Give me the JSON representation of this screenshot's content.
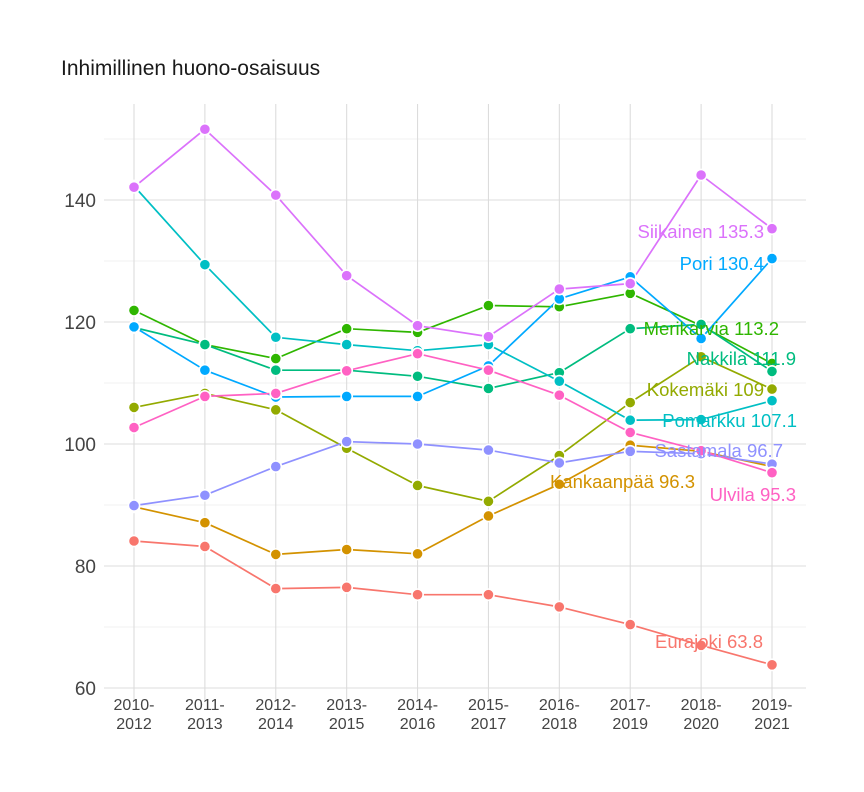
{
  "chart_data": {
    "type": "line",
    "title": "Inhimillinen huono-osaisuus",
    "xlabel": "",
    "ylabel": "",
    "categories": [
      "2010-2012",
      "2011-2013",
      "2012-2014",
      "2013-2015",
      "2014-2016",
      "2015-2017",
      "2016-2018",
      "2017-2019",
      "2018-2020",
      "2019-2021"
    ],
    "category_lines": [
      [
        "2010-",
        "2012"
      ],
      [
        "2011-",
        "2013"
      ],
      [
        "2012-",
        "2014"
      ],
      [
        "2013-",
        "2015"
      ],
      [
        "2014-",
        "2016"
      ],
      [
        "2015-",
        "2017"
      ],
      [
        "2016-",
        "2018"
      ],
      [
        "2017-",
        "2019"
      ],
      [
        "2018-",
        "2020"
      ],
      [
        "2019-",
        "2021"
      ]
    ],
    "ylim": [
      59,
      152
    ],
    "yticks": [
      60,
      80,
      100,
      120,
      140
    ],
    "grid": true,
    "legend": "none",
    "series": [
      {
        "name": "Eurajoki",
        "color": "#F8766D",
        "end_label": "Eurajoki 63.8",
        "values": [
          84.1,
          83.2,
          76.3,
          76.5,
          75.3,
          75.3,
          73.3,
          70.4,
          67.0,
          63.8
        ]
      },
      {
        "name": "Kankaanpää",
        "color": "#D39200",
        "end_label": "Kankaanpää 96.3",
        "values": [
          89.7,
          87.1,
          81.9,
          82.7,
          82.0,
          88.2,
          93.4,
          99.8,
          98.8,
          96.3
        ]
      },
      {
        "name": "Kokemäki",
        "color": "#93AA00",
        "end_label": "Kokemäki 109",
        "values": [
          106.0,
          108.3,
          105.6,
          99.3,
          93.2,
          90.6,
          98.1,
          106.8,
          114.3,
          109.0
        ]
      },
      {
        "name": "Merikarvia",
        "color": "#2FB600",
        "end_label": "Merikarvia 113.2",
        "values": [
          121.9,
          116.3,
          114.0,
          118.9,
          118.3,
          122.7,
          122.5,
          124.7,
          119.4,
          113.2
        ]
      },
      {
        "name": "Nakkila",
        "color": "#00BC7F",
        "end_label": "Nakkila 111.9",
        "values": [
          119.1,
          116.3,
          112.1,
          112.1,
          111.1,
          109.1,
          111.7,
          118.9,
          119.6,
          111.9
        ]
      },
      {
        "name": "Pomarkku",
        "color": "#00BFC4",
        "end_label": "Pomarkku 107.1",
        "values": [
          142.3,
          129.4,
          117.5,
          116.3,
          115.3,
          116.3,
          110.3,
          103.9,
          104.0,
          107.1
        ]
      },
      {
        "name": "Pori",
        "color": "#00A9FF",
        "end_label": "Pori 130.4",
        "values": [
          119.2,
          112.1,
          107.7,
          107.8,
          107.8,
          112.8,
          123.8,
          127.4,
          117.3,
          130.4
        ]
      },
      {
        "name": "Sastamala",
        "color": "#8F91FF",
        "end_label": "Sastamala 96.7",
        "values": [
          89.9,
          91.6,
          96.3,
          100.4,
          100.0,
          99.0,
          96.9,
          98.8,
          98.4,
          96.7
        ]
      },
      {
        "name": "Siikainen",
        "color": "#DB72FB",
        "end_label": "Siikainen 135.3",
        "values": [
          142.1,
          151.6,
          140.8,
          127.6,
          119.4,
          117.6,
          125.4,
          126.3,
          144.1,
          135.3
        ]
      },
      {
        "name": "Ulvila",
        "color": "#FF61C3",
        "end_label": "Ulvila 95.3",
        "values": [
          102.7,
          107.8,
          108.3,
          112.0,
          114.8,
          112.1,
          108.0,
          101.9,
          98.9,
          95.3
        ]
      }
    ]
  }
}
